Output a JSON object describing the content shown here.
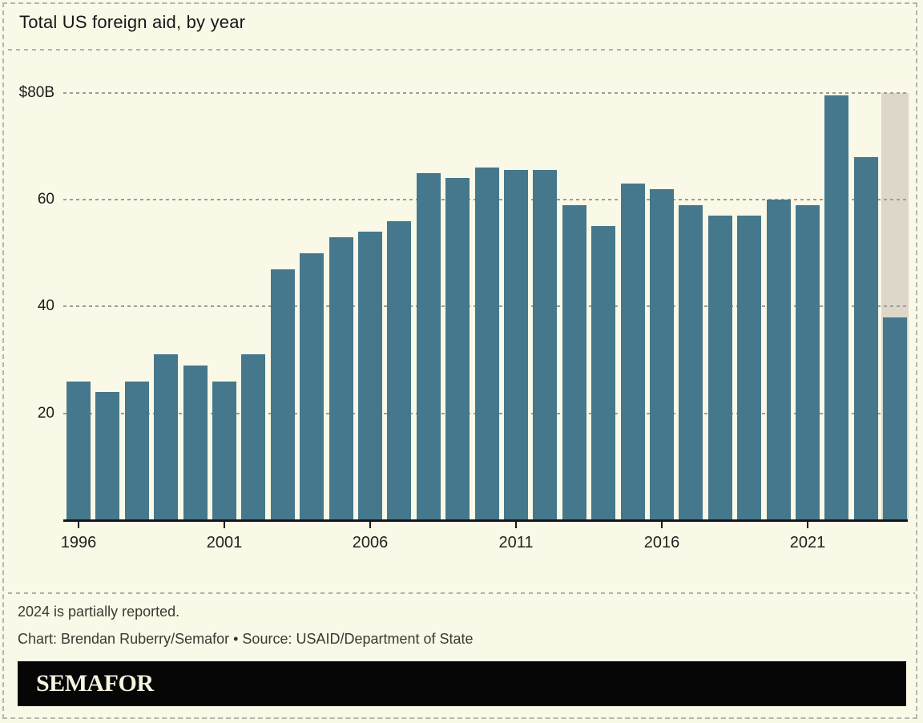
{
  "header": {
    "title": "Total US foreign aid, by year"
  },
  "chart_data": {
    "type": "bar",
    "title": "Total US foreign aid, by year",
    "unit": "USD billions",
    "categories": [
      1996,
      1997,
      1998,
      1999,
      2000,
      2001,
      2002,
      2003,
      2004,
      2005,
      2006,
      2007,
      2008,
      2009,
      2010,
      2011,
      2012,
      2013,
      2014,
      2015,
      2016,
      2017,
      2018,
      2019,
      2020,
      2021,
      2022,
      2023,
      2024
    ],
    "values": [
      26,
      24,
      26,
      31,
      29,
      26,
      31,
      47,
      50,
      53,
      54,
      56,
      65,
      64,
      66,
      65.5,
      65.5,
      59,
      55,
      63,
      62,
      59,
      57,
      57,
      60,
      59,
      79.5,
      68,
      38
    ],
    "y_ticks": [
      {
        "value": 80,
        "label": "$80B"
      },
      {
        "value": 60,
        "label": "60"
      },
      {
        "value": 40,
        "label": "40"
      },
      {
        "value": 20,
        "label": "20"
      }
    ],
    "x_ticks": [
      1996,
      2001,
      2006,
      2011,
      2016,
      2021
    ],
    "ylim": [
      0,
      84
    ],
    "grid": "dashed-horizontal",
    "legend": "none",
    "xlabel": "",
    "ylabel": "",
    "bar_color": "#45788c",
    "highlight": {
      "year": 2024,
      "band_top_value": 80,
      "band_color": "#dcd7c9",
      "meaning": "partially reported"
    }
  },
  "footer": {
    "note": "2024 is partially reported.",
    "credit": "Chart: Brendan Ruberry/Semafor • Source: USAID/Department of State",
    "logo_text": "SEMAFOR"
  },
  "colors": {
    "background": "#faf8e6",
    "bar": "#45788c",
    "highlight_band": "#dcd7c9",
    "logo_bar": "#060606",
    "logo_text": "#f8f4df",
    "dashed_lines": "#b2b2a8"
  }
}
